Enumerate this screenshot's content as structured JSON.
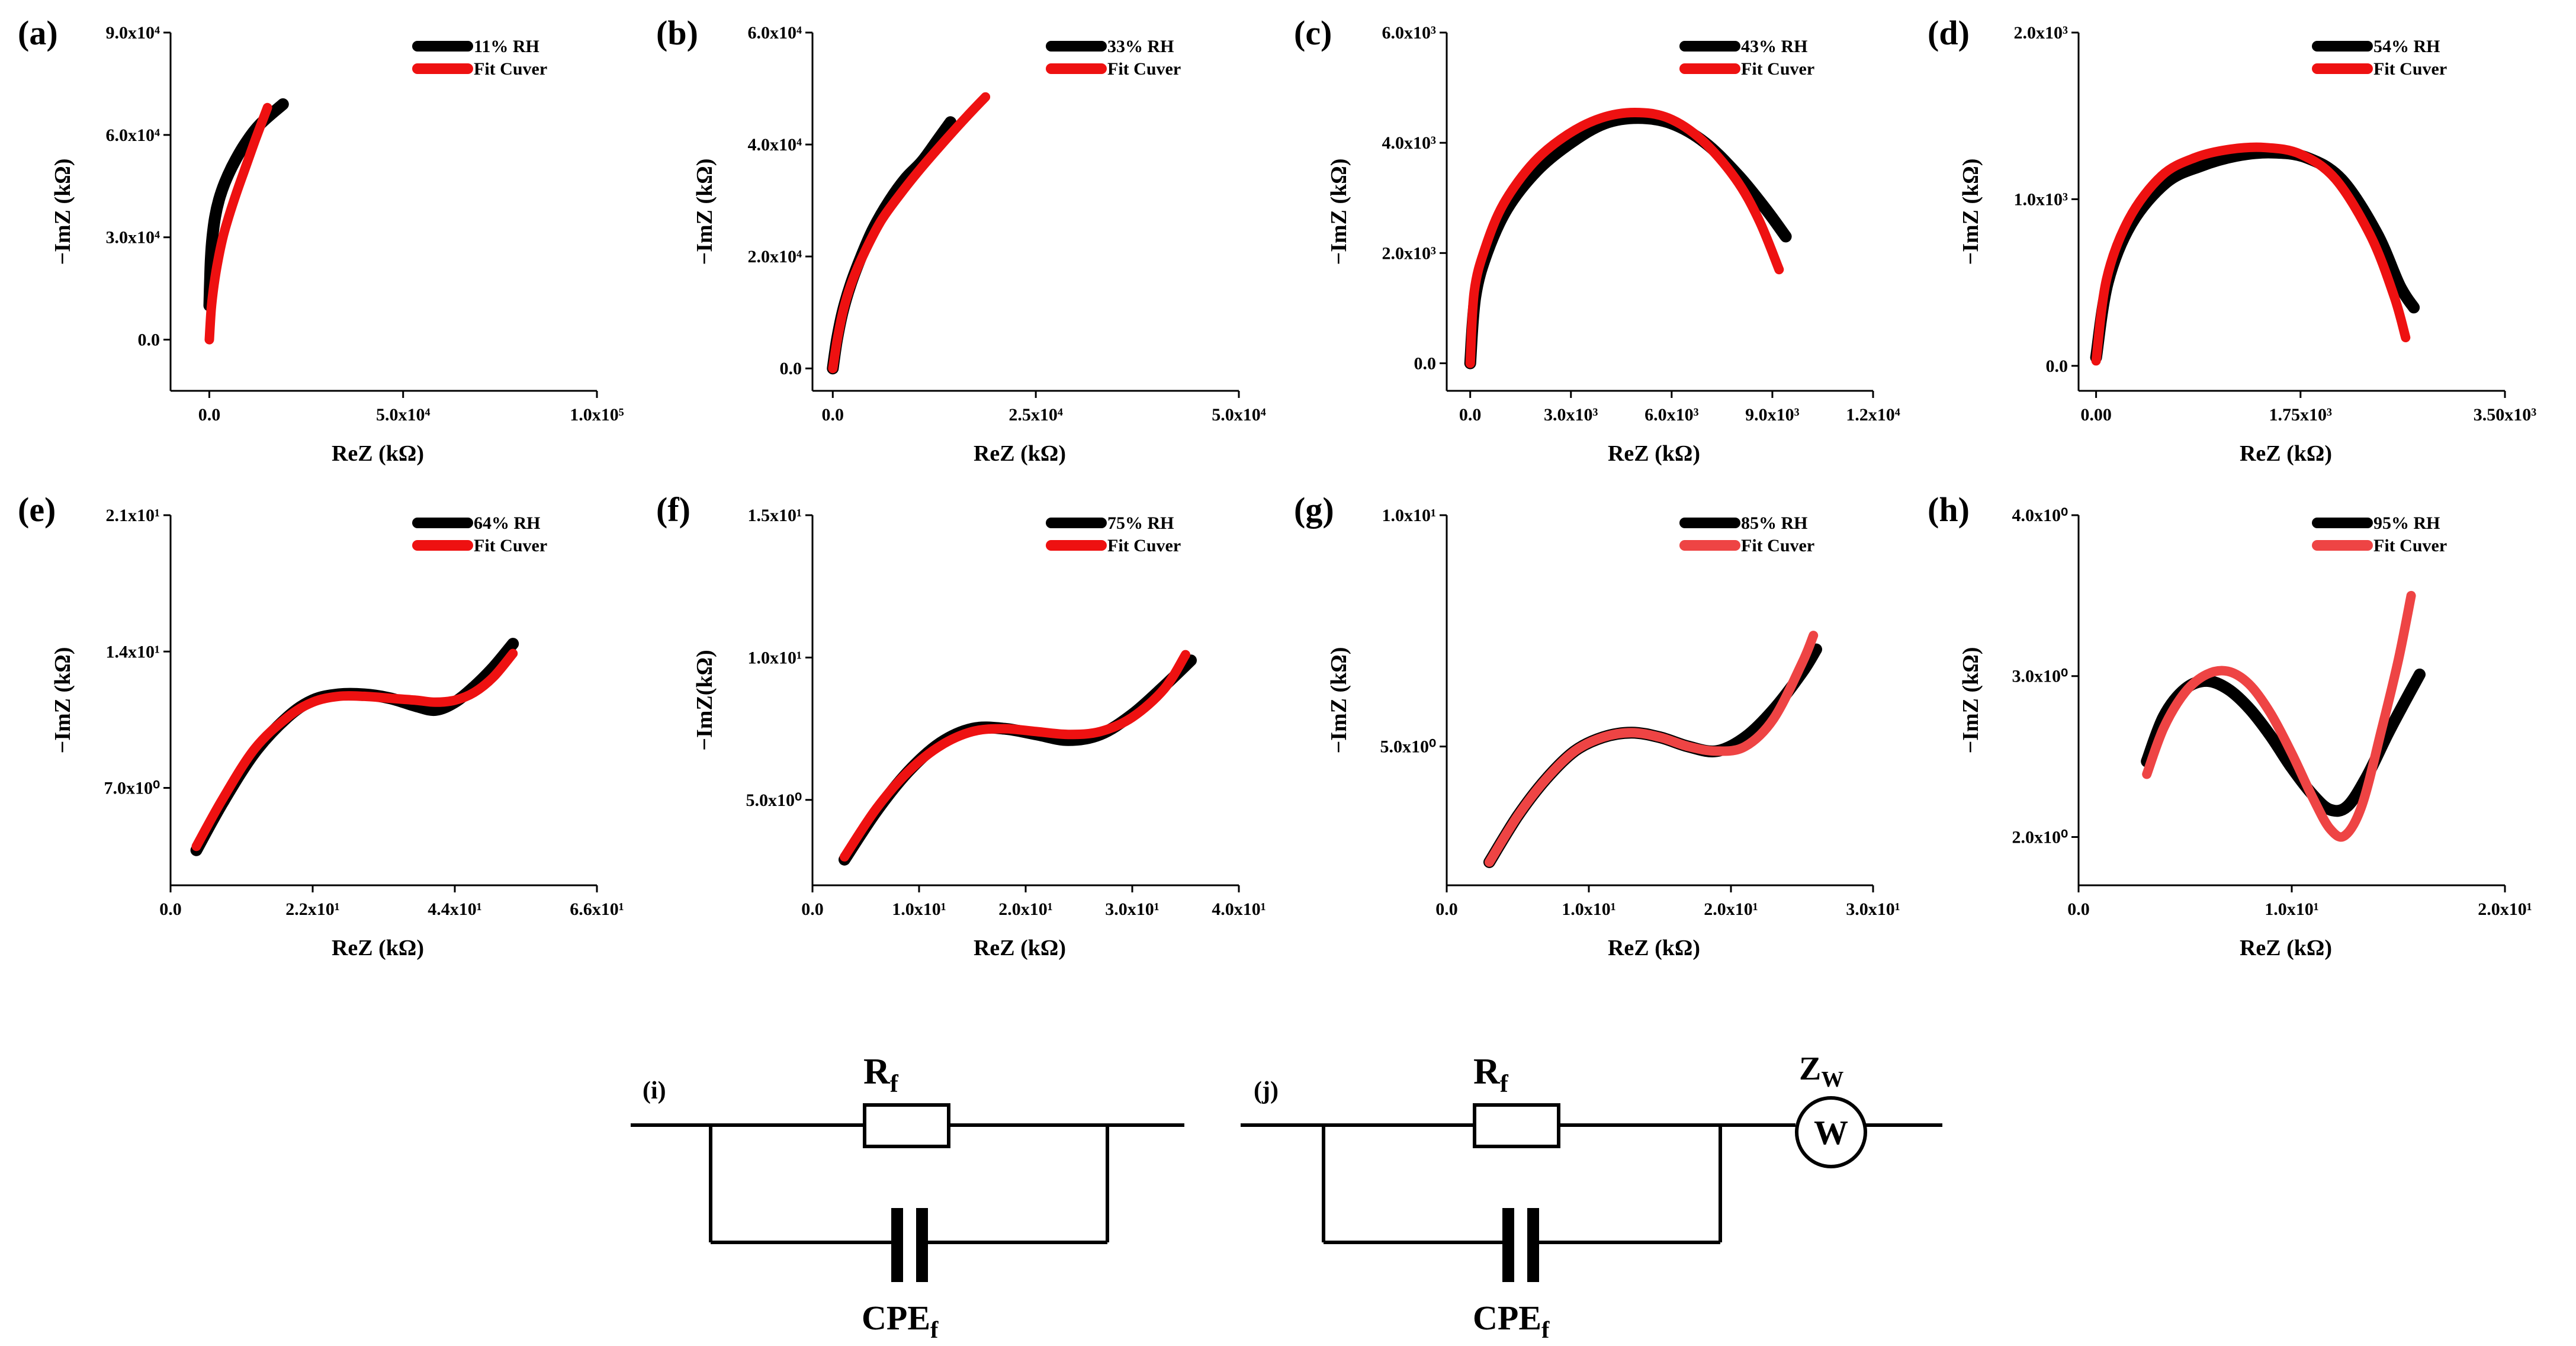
{
  "colors": {
    "measured": "#000000",
    "fit": "#ee1111",
    "fit_light": "#ee4444",
    "axis": "#000000",
    "background": "#ffffff"
  },
  "chart_data": [
    {
      "panel": "(a)",
      "type": "line",
      "xlabel": "ReZ (kΩ)",
      "ylabel": "−ImZ (kΩ)",
      "xlim": [
        -10000,
        100000
      ],
      "ylim": [
        -15000,
        90000
      ],
      "xticks": [
        0,
        50000,
        100000
      ],
      "xtick_labels": [
        "0.0",
        "5.0x10⁴",
        "1.0x10⁵"
      ],
      "yticks": [
        0,
        30000,
        60000,
        90000
      ],
      "ytick_labels": [
        "0.0",
        "3.0x10⁴",
        "6.0x10⁴",
        "9.0x10⁴"
      ],
      "legend": [
        "11% RH",
        "Fit Cuver"
      ],
      "series": [
        {
          "name": "11% RH",
          "x": [
            0,
            200,
            400,
            800,
            1500,
            2500,
            4000,
            6000,
            9000,
            13000,
            19000
          ],
          "y": [
            10000,
            18000,
            24000,
            30000,
            36000,
            41000,
            46000,
            51000,
            57000,
            63000,
            69000
          ]
        },
        {
          "name": "Fit Cuver",
          "x": [
            0,
            500,
            1200,
            2200,
            3500,
            5000,
            7000,
            9500,
            12000,
            15000
          ],
          "y": [
            0,
            9000,
            16000,
            23000,
            30000,
            36000,
            43000,
            51000,
            59000,
            68000
          ]
        }
      ]
    },
    {
      "panel": "(b)",
      "type": "line",
      "xlabel": "ReZ (kΩ)",
      "ylabel": "−ImZ (kΩ)",
      "xlim": [
        -2500,
        50000
      ],
      "ylim": [
        -4000,
        60000
      ],
      "xticks": [
        0,
        25000,
        50000
      ],
      "xtick_labels": [
        "0.0",
        "2.5x10⁴",
        "5.0x10⁴"
      ],
      "yticks": [
        0,
        20000,
        40000,
        60000
      ],
      "ytick_labels": [
        "0.0",
        "2.0x10⁴",
        "4.0x10⁴",
        "6.0x10⁴"
      ],
      "legend": [
        "33% RH",
        "Fit Cuver"
      ],
      "series": [
        {
          "name": "33% RH",
          "x": [
            0,
            500,
            1200,
            2200,
            3500,
            5000,
            7000,
            9000,
            11000,
            13000,
            14500
          ],
          "y": [
            0,
            5000,
            10000,
            15000,
            20000,
            25000,
            30000,
            34000,
            37000,
            41000,
            44000
          ]
        },
        {
          "name": "Fit Cuver",
          "x": [
            0,
            600,
            1400,
            2500,
            4000,
            6000,
            8500,
            11000,
            14000,
            16500,
            18800
          ],
          "y": [
            0,
            5500,
            11000,
            16000,
            21000,
            26500,
            31500,
            36000,
            41000,
            45000,
            48500
          ]
        }
      ]
    },
    {
      "panel": "(c)",
      "type": "line",
      "xlabel": "ReZ (kΩ)",
      "ylabel": "−ImZ (kΩ)",
      "xlim": [
        -700,
        12000
      ],
      "ylim": [
        -500,
        6000
      ],
      "xticks": [
        0,
        3000,
        6000,
        9000,
        12000
      ],
      "xtick_labels": [
        "0.0",
        "3.0x10³",
        "6.0x10³",
        "9.0x10³",
        "1.2x10⁴"
      ],
      "yticks": [
        0,
        2000,
        4000,
        6000
      ],
      "ytick_labels": [
        "0.0",
        "2.0x10³",
        "4.0x10³",
        "6.0x10³"
      ],
      "legend": [
        "43% RH",
        "Fit Cuver"
      ],
      "series": [
        {
          "name": "43% RH",
          "x": [
            0,
            150,
            500,
            1100,
            2000,
            3000,
            4000,
            5000,
            6000,
            7000,
            8000,
            8800,
            9400
          ],
          "y": [
            0,
            1200,
            2000,
            2800,
            3500,
            4000,
            4350,
            4450,
            4350,
            4000,
            3400,
            2800,
            2300
          ]
        },
        {
          "name": "Fit Cuver",
          "x": [
            0,
            120,
            450,
            1000,
            1900,
            2900,
            3900,
            4900,
            5900,
            6900,
            7900,
            8600,
            9200
          ],
          "y": [
            0,
            1300,
            2100,
            2900,
            3650,
            4150,
            4450,
            4550,
            4450,
            4050,
            3350,
            2600,
            1700
          ]
        }
      ]
    },
    {
      "panel": "(d)",
      "type": "line",
      "xlabel": "ReZ (kΩ)",
      "ylabel": "−ImZ (kΩ)",
      "xlim": [
        -150,
        3500
      ],
      "ylim": [
        -150,
        2000
      ],
      "xticks": [
        0,
        1750,
        3500
      ],
      "xtick_labels": [
        "0.00",
        "1.75x10³",
        "3.50x10³"
      ],
      "yticks": [
        0,
        1000,
        2000
      ],
      "ytick_labels": [
        "0.0",
        "1.0x10³",
        "2.0x10³"
      ],
      "legend": [
        "54% RH",
        "Fit Cuver"
      ],
      "series": [
        {
          "name": "54% RH",
          "x": [
            0,
            100,
            300,
            600,
            900,
            1200,
            1500,
            1800,
            2100,
            2400,
            2600,
            2720
          ],
          "y": [
            50,
            500,
            850,
            1100,
            1200,
            1260,
            1280,
            1250,
            1120,
            800,
            480,
            350
          ]
        },
        {
          "name": "Fit Cuver",
          "x": [
            0,
            90,
            280,
            560,
            850,
            1150,
            1450,
            1750,
            2050,
            2350,
            2550,
            2650
          ],
          "y": [
            30,
            520,
            880,
            1140,
            1250,
            1300,
            1310,
            1270,
            1120,
            780,
            420,
            170
          ]
        }
      ]
    },
    {
      "panel": "(e)",
      "type": "line",
      "xlabel": "ReZ (kΩ)",
      "ylabel": "−ImZ (kΩ)",
      "xlim": [
        0,
        66
      ],
      "ylim": [
        2,
        21
      ],
      "xticks": [
        0,
        22,
        44,
        66
      ],
      "xtick_labels": [
        "0.0",
        "2.2x10¹",
        "4.4x10¹",
        "6.6x10¹"
      ],
      "yticks": [
        7,
        14,
        21
      ],
      "ytick_labels": [
        "7.0x10⁰",
        "1.4x10¹",
        "2.1x10¹"
      ],
      "legend": [
        "64% RH",
        "Fit Cuver"
      ],
      "series": [
        {
          "name": "64% RH",
          "x": [
            4,
            8,
            13,
            18,
            22,
            26,
            30,
            34,
            38,
            41,
            44,
            47,
            50,
            53
          ],
          "y": [
            3.8,
            6.2,
            8.8,
            10.6,
            11.5,
            11.8,
            11.8,
            11.6,
            11.2,
            11.0,
            11.4,
            12.2,
            13.2,
            14.4
          ]
        },
        {
          "name": "Fit Cuver",
          "x": [
            4,
            8,
            13,
            18,
            22,
            26,
            30,
            34,
            38,
            41,
            44,
            47,
            50,
            53
          ],
          "y": [
            4.0,
            6.4,
            9.0,
            10.6,
            11.4,
            11.7,
            11.7,
            11.6,
            11.5,
            11.4,
            11.5,
            11.9,
            12.7,
            13.9
          ]
        }
      ]
    },
    {
      "panel": "(f)",
      "type": "line",
      "xlabel": "ReZ (kΩ)",
      "ylabel": "−ImZ(kΩ)",
      "xlim": [
        0,
        40
      ],
      "ylim": [
        2,
        15
      ],
      "xticks": [
        0,
        10,
        20,
        30,
        40
      ],
      "xtick_labels": [
        "0.0",
        "1.0x10¹",
        "2.0x10¹",
        "3.0x10¹",
        "4.0x10¹"
      ],
      "yticks": [
        5,
        10,
        15
      ],
      "ytick_labels": [
        "5.0x10⁰",
        "1.0x10¹",
        "1.5x10¹"
      ],
      "legend": [
        "75% RH",
        "Fit Cuver"
      ],
      "series": [
        {
          "name": "75% RH",
          "x": [
            3,
            6,
            9,
            12,
            15,
            18,
            21,
            24,
            27,
            30,
            33,
            35.5
          ],
          "y": [
            2.9,
            4.6,
            6.0,
            7.0,
            7.5,
            7.5,
            7.3,
            7.1,
            7.3,
            8.0,
            9.0,
            9.9
          ]
        },
        {
          "name": "Fit Cuver",
          "x": [
            3,
            6,
            9,
            12,
            15,
            18,
            21,
            24,
            27,
            30,
            33,
            35
          ],
          "y": [
            3.0,
            4.7,
            6.0,
            6.9,
            7.4,
            7.5,
            7.4,
            7.3,
            7.4,
            7.9,
            8.9,
            10.1
          ]
        }
      ]
    },
    {
      "panel": "(g)",
      "type": "line",
      "xlabel": "ReZ (kΩ)",
      "ylabel": "−ImZ (kΩ)",
      "xlim": [
        0,
        30
      ],
      "ylim": [
        2,
        10
      ],
      "xticks": [
        0,
        10,
        20,
        30
      ],
      "xtick_labels": [
        "0.0",
        "1.0x10¹",
        "2.0x10¹",
        "3.0x10¹"
      ],
      "yticks": [
        5,
        10
      ],
      "ytick_labels": [
        "5.0x10⁰",
        "1.0x10¹"
      ],
      "legend": [
        "85% RH",
        "Fit Cuver"
      ],
      "series": [
        {
          "name": "85% RH",
          "x": [
            3,
            5,
            7,
            9,
            11,
            13,
            15,
            17,
            19,
            21,
            23,
            25,
            26
          ],
          "y": [
            2.5,
            3.5,
            4.3,
            4.9,
            5.2,
            5.3,
            5.2,
            5.0,
            4.9,
            5.2,
            5.8,
            6.6,
            7.1
          ]
        },
        {
          "name": "Fit Cuver",
          "x": [
            3,
            5,
            7,
            9,
            11,
            13,
            15,
            17,
            19,
            21,
            23,
            25,
            25.8
          ],
          "y": [
            2.5,
            3.5,
            4.3,
            4.9,
            5.2,
            5.3,
            5.2,
            5.0,
            4.9,
            5.0,
            5.6,
            6.8,
            7.4
          ]
        }
      ]
    },
    {
      "panel": "(h)",
      "type": "line",
      "xlabel": "ReZ (kΩ)",
      "ylabel": "−ImZ (kΩ)",
      "xlim": [
        0,
        20
      ],
      "ylim": [
        1.7,
        4
      ],
      "xticks": [
        0,
        10,
        20
      ],
      "xtick_labels": [
        "0.0",
        "1.0x10¹",
        "2.0x10¹"
      ],
      "yticks": [
        2,
        3,
        4
      ],
      "ytick_labels": [
        "2.0x10⁰",
        "3.0x10⁰",
        "4.0x10⁰"
      ],
      "legend": [
        "95% RH",
        "Fit Cuver"
      ],
      "series": [
        {
          "name": "95% RH",
          "x": [
            3.2,
            4.0,
            5.0,
            6.0,
            7.0,
            8.0,
            9.0,
            10.0,
            11.0,
            11.8,
            12.6,
            13.5,
            14.5,
            15.3,
            16.0
          ],
          "y": [
            2.47,
            2.75,
            2.92,
            2.97,
            2.92,
            2.8,
            2.63,
            2.43,
            2.26,
            2.17,
            2.19,
            2.37,
            2.64,
            2.84,
            3.01
          ]
        },
        {
          "name": "Fit Cuver",
          "x": [
            3.2,
            4.0,
            5.0,
            6.0,
            7.0,
            8.0,
            9.0,
            10.0,
            11.0,
            11.8,
            12.5,
            13.3,
            14.2,
            15.0,
            15.6
          ],
          "y": [
            2.39,
            2.68,
            2.9,
            3.01,
            3.03,
            2.95,
            2.77,
            2.52,
            2.24,
            2.05,
            2.01,
            2.2,
            2.66,
            3.1,
            3.5
          ]
        }
      ]
    }
  ],
  "circuits": [
    {
      "label": "(i)",
      "resistor": "R",
      "resistor_sub": "f",
      "cpe": "CPE",
      "cpe_sub": "f"
    },
    {
      "label": "(j)",
      "resistor": "R",
      "resistor_sub": "f",
      "cpe": "CPE",
      "cpe_sub": "f",
      "warburg": "Z",
      "warburg_sub": "W",
      "warburg_symbol": "W"
    }
  ]
}
